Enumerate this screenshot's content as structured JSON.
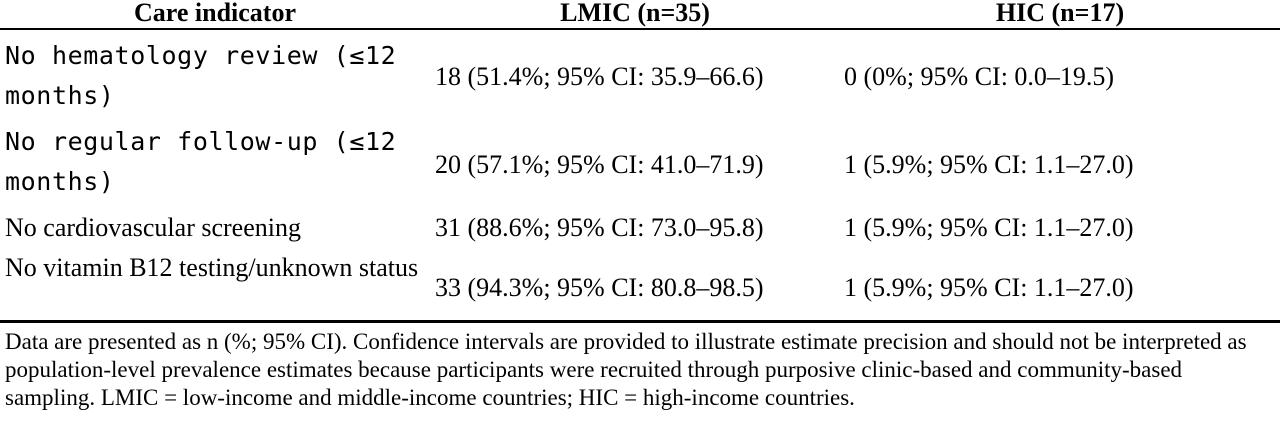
{
  "header": {
    "indicator": "Care indicator",
    "lmic": "LMIC (n=35)",
    "hic": "HIC (n=17)"
  },
  "rows": [
    {
      "indicator": "No hematology review (≤12 months)",
      "lmic": "18 (51.4%; 95% CI: 35.9–66.6)",
      "hic": "0 (0%; 95% CI: 0.0–19.5)"
    },
    {
      "indicator": "No regular follow-up (≤12 months)",
      "lmic": "20 (57.1%; 95% CI: 41.0–71.9)",
      "hic": "1 (5.9%; 95% CI: 1.1–27.0)"
    },
    {
      "indicator": "No cardiovascular screening",
      "lmic": "31 (88.6%; 95% CI: 73.0–95.8)",
      "hic": "1 (5.9%; 95% CI: 1.1–27.0)"
    },
    {
      "indicator": "No vitamin B12 testing/unknown status",
      "lmic": "33 (94.3%; 95% CI: 80.8–98.5)",
      "hic": "1 (5.9%; 95% CI: 1.1–27.0)"
    }
  ],
  "footnote": "Data are presented as n (%; 95% CI). Confidence intervals are provided to illustrate estimate precision and should not be interpreted as population-level prevalence estimates because participants were recruited through purposive clinic-based and community-based sampling. LMIC = low-income and middle-income countries; HIC = high-income countries."
}
